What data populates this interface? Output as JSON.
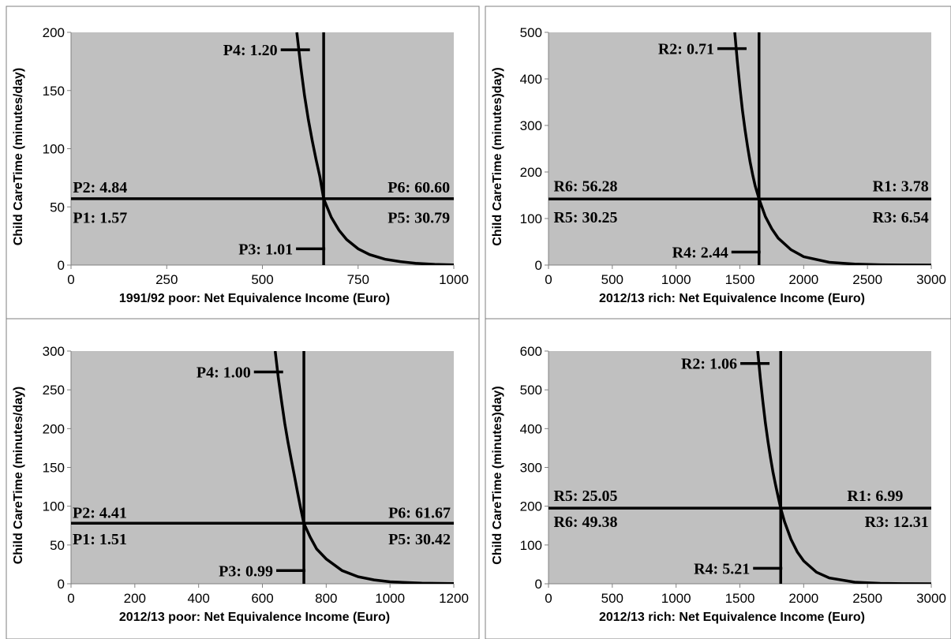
{
  "chart_data": [
    {
      "type": "line",
      "xlabel": "1991/92 poor: Net Equivalence Income (Euro)",
      "ylabel": "Child CareTime (minutes/day)",
      "xlim": [
        0,
        1000
      ],
      "ylim": [
        0,
        200
      ],
      "x_ticks": [
        "0",
        "250",
        "500",
        "750",
        "1000"
      ],
      "y_ticks": [
        "0",
        "50",
        "100",
        "150",
        "200"
      ],
      "curve": {
        "x": [
          590,
          600,
          610,
          620,
          630,
          640,
          650,
          660,
          680,
          700,
          720,
          750,
          780,
          820,
          860,
          900,
          950,
          1000
        ],
        "y": [
          200,
          171,
          146,
          125,
          107,
          91,
          76,
          57,
          41,
          30,
          22,
          14,
          9,
          5,
          3,
          1.5,
          0.6,
          0.2
        ]
      },
      "vertical_line_x": 660,
      "horizontal_line_y": 57,
      "annotations": [
        {
          "text": "P4: 1.20",
          "x": 620,
          "y": 185,
          "marker": true
        },
        {
          "text": "P2: 4.84",
          "x": 5,
          "y": 67,
          "marker": false
        },
        {
          "text": "P6: 60.60",
          "x": 990,
          "y": 67,
          "marker": false
        },
        {
          "text": "P1: 1.57",
          "x": 5,
          "y": 41,
          "marker": false
        },
        {
          "text": "P5: 30.79",
          "x": 990,
          "y": 41,
          "marker": false
        },
        {
          "text": "P3: 1.01",
          "x": 660,
          "y": 14,
          "marker": true
        }
      ]
    },
    {
      "type": "line",
      "xlabel": "2012/13 rich: Net Equivalence Income (Euro)",
      "ylabel": "Child CareTime (minutes)day)",
      "xlim": [
        0,
        3000
      ],
      "ylim": [
        0,
        500
      ],
      "x_ticks": [
        "0",
        "500",
        "1000",
        "1500",
        "2000",
        "2500",
        "3000"
      ],
      "y_ticks": [
        "0",
        "100",
        "200",
        "300",
        "400",
        "500"
      ],
      "curve": {
        "x": [
          1460,
          1480,
          1500,
          1520,
          1540,
          1560,
          1580,
          1600,
          1620,
          1650,
          1700,
          1750,
          1800,
          1900,
          2000,
          2200,
          2400,
          2600,
          2800,
          3000
        ],
        "y": [
          500,
          437,
          382,
          333,
          291,
          255,
          222,
          194,
          170,
          142,
          104,
          78,
          58,
          33,
          18,
          6,
          2,
          0.7,
          0.2,
          0.05
        ]
      },
      "vertical_line_x": 1650,
      "horizontal_line_y": 142,
      "annotations": [
        {
          "text": "R2: 0.71",
          "x": 1540,
          "y": 465,
          "marker": true
        },
        {
          "text": "R6: 56.28",
          "x": 40,
          "y": 170,
          "marker": false
        },
        {
          "text": "R1: 3.78",
          "x": 2980,
          "y": 170,
          "marker": false
        },
        {
          "text": "R5: 30.25",
          "x": 40,
          "y": 103,
          "marker": false
        },
        {
          "text": "R3: 6.54",
          "x": 2980,
          "y": 103,
          "marker": false
        },
        {
          "text": "R4: 2.44",
          "x": 1650,
          "y": 28,
          "marker": true
        }
      ]
    },
    {
      "type": "line",
      "xlabel": "2012/13 poor: Net Equivalence Income (Euro)",
      "ylabel": "Child CareTime (minutes/day)",
      "xlim": [
        0,
        1200
      ],
      "ylim": [
        0,
        300
      ],
      "x_ticks": [
        "0",
        "200",
        "400",
        "600",
        "800",
        "1000",
        "1200"
      ],
      "y_ticks": [
        "0",
        "50",
        "100",
        "150",
        "200",
        "250",
        "300"
      ],
      "curve": {
        "x": [
          640,
          650,
          660,
          670,
          680,
          690,
          700,
          710,
          720,
          730,
          750,
          770,
          800,
          850,
          900,
          950,
          1000,
          1100,
          1200
        ],
        "y": [
          300,
          265,
          235,
          207,
          183,
          161,
          140,
          118,
          97,
          78,
          60,
          45,
          32,
          17,
          9,
          5,
          2.5,
          0.7,
          0.2
        ]
      },
      "vertical_line_x": 730,
      "horizontal_line_y": 78,
      "annotations": [
        {
          "text": "P4: 1.00",
          "x": 660,
          "y": 273,
          "marker": true
        },
        {
          "text": "P2: 4.41",
          "x": 5,
          "y": 92,
          "marker": false
        },
        {
          "text": "P6: 61.67",
          "x": 1190,
          "y": 92,
          "marker": false
        },
        {
          "text": "P1: 1.51",
          "x": 5,
          "y": 58,
          "marker": false
        },
        {
          "text": "P5: 30.42",
          "x": 1190,
          "y": 58,
          "marker": false
        },
        {
          "text": "P3: 0.99",
          "x": 730,
          "y": 17,
          "marker": true
        }
      ]
    },
    {
      "type": "line",
      "xlabel": "2012/13 rich: Net Equivalence Income (Euro)",
      "ylabel": "Child CareTime (minutes)day)",
      "xlim": [
        0,
        3000
      ],
      "ylim": [
        0,
        600
      ],
      "x_ticks": [
        "0",
        "500",
        "1000",
        "1500",
        "2000",
        "2500",
        "3000"
      ],
      "y_ticks": [
        "0",
        "100",
        "200",
        "300",
        "400",
        "500",
        "600"
      ],
      "curve": {
        "x": [
          1640,
          1660,
          1680,
          1700,
          1720,
          1740,
          1760,
          1780,
          1800,
          1820,
          1850,
          1900,
          1950,
          2000,
          2100,
          2200,
          2400,
          2600,
          2800,
          3000
        ],
        "y": [
          600,
          530,
          470,
          415,
          367,
          325,
          287,
          254,
          224,
          195,
          160,
          115,
          82,
          59,
          30,
          15,
          4,
          1,
          0.3,
          0.1
        ]
      },
      "vertical_line_x": 1820,
      "horizontal_line_y": 195,
      "annotations": [
        {
          "text": "R2: 1.06",
          "x": 1720,
          "y": 568,
          "marker": true
        },
        {
          "text": "R5: 25.05",
          "x": 40,
          "y": 228,
          "marker": false
        },
        {
          "text": "R1: 6.99",
          "x": 2780,
          "y": 228,
          "marker": false
        },
        {
          "text": "R6: 49.38",
          "x": 40,
          "y": 161,
          "marker": false
        },
        {
          "text": "R3: 12.31",
          "x": 2980,
          "y": 161,
          "marker": false
        },
        {
          "text": "R4: 5.21",
          "x": 1820,
          "y": 40,
          "marker": true
        }
      ]
    }
  ]
}
